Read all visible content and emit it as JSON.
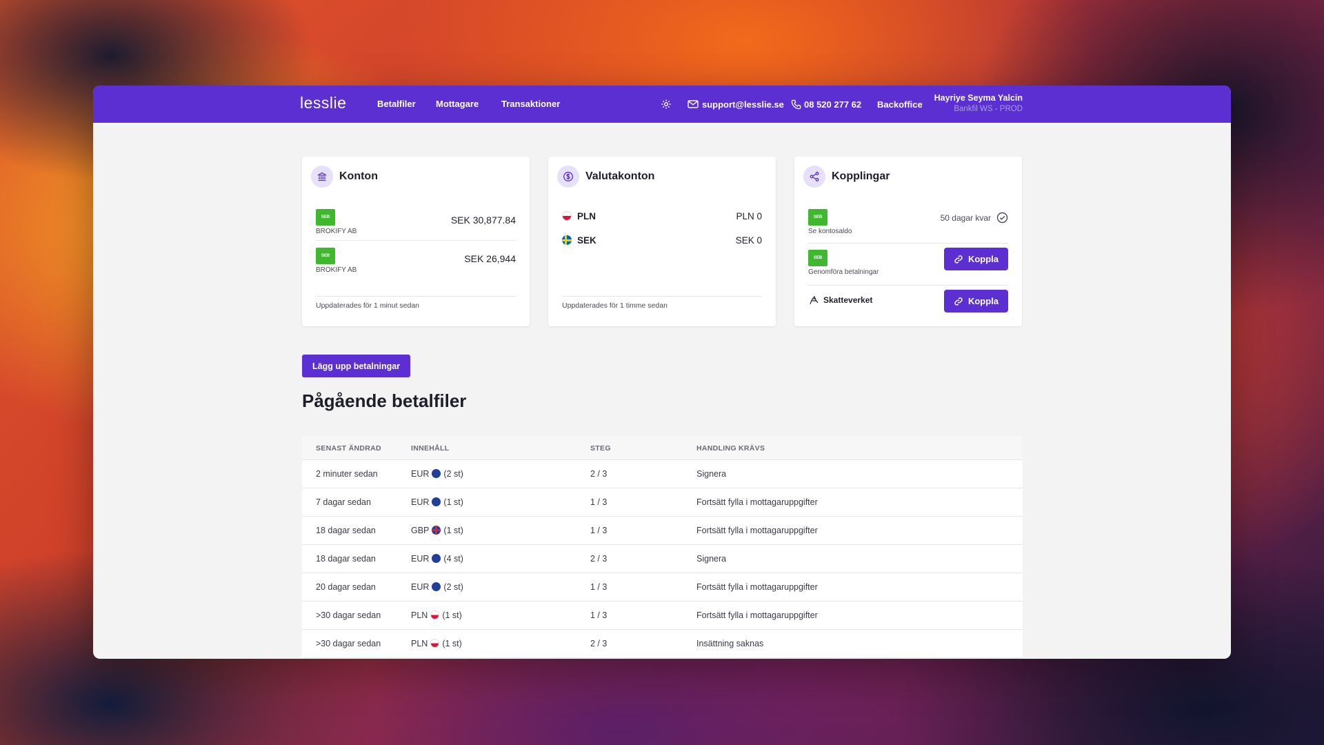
{
  "nav": {
    "logo": "lesslie",
    "links": [
      "Betalfiler",
      "Mottagare",
      "Transaktioner"
    ],
    "email": "support@lesslie.se",
    "phone": "08 520 277 62",
    "backoffice": "Backoffice",
    "user_name": "Hayriye Seyma Yalcin",
    "user_env": "Bankfil WS - PROD"
  },
  "konton": {
    "title": "Konton",
    "accounts": [
      {
        "bank": "SEB",
        "name": "BROKIFY AB",
        "amount": "SEK 30,877.84"
      },
      {
        "bank": "SEB",
        "name": "BROKIFY AB",
        "amount": "SEK 26,944"
      }
    ],
    "updated": "Uppdaterades för 1 minut sedan"
  },
  "valuta": {
    "title": "Valutakonton",
    "rows": [
      {
        "code": "PLN",
        "value": "PLN 0"
      },
      {
        "code": "SEK",
        "value": "SEK 0"
      }
    ],
    "updated": "Uppdaterades för 1 timme sedan"
  },
  "kopplingar": {
    "title": "Kopplingar",
    "rows": [
      {
        "bank": "SEB",
        "label": "Se kontosaldo",
        "status": "50 dagar kvar"
      },
      {
        "bank": "SEB",
        "label": "Genomföra betalningar",
        "button": "Koppla"
      },
      {
        "label": "Skatteverket",
        "button": "Koppla"
      }
    ]
  },
  "main": {
    "upload_button": "Lägg upp betalningar",
    "section_title": "Pågående betalfiler"
  },
  "table": {
    "headers": [
      "SENAST ÄNDRAD",
      "INNEHÅLL",
      "STEG",
      "HANDLING KRÄVS"
    ],
    "rows": [
      {
        "changed": "2 minuter sedan",
        "currency": "EUR",
        "flag": "eu",
        "count": "(2 st)",
        "step": "2 / 3",
        "action": "Signera"
      },
      {
        "changed": "7 dagar sedan",
        "currency": "EUR",
        "flag": "eu",
        "count": "(1 st)",
        "step": "1 / 3",
        "action": "Fortsätt fylla i mottagaruppgifter"
      },
      {
        "changed": "18 dagar sedan",
        "currency": "GBP",
        "flag": "gb",
        "count": "(1 st)",
        "step": "1 / 3",
        "action": "Fortsätt fylla i mottagaruppgifter"
      },
      {
        "changed": "18 dagar sedan",
        "currency": "EUR",
        "flag": "eu",
        "count": "(4 st)",
        "step": "2 / 3",
        "action": "Signera"
      },
      {
        "changed": "20 dagar sedan",
        "currency": "EUR",
        "flag": "eu",
        "count": "(2 st)",
        "step": "1 / 3",
        "action": "Fortsätt fylla i mottagaruppgifter"
      },
      {
        "changed": ">30 dagar sedan",
        "currency": "PLN",
        "flag": "pl",
        "count": "(1 st)",
        "step": "1 / 3",
        "action": "Fortsätt fylla i mottagaruppgifter"
      },
      {
        "changed": ">30 dagar sedan",
        "currency": "PLN",
        "flag": "pl",
        "count": "(1 st)",
        "step": "2 / 3",
        "action": "Insättning saknas"
      }
    ]
  }
}
